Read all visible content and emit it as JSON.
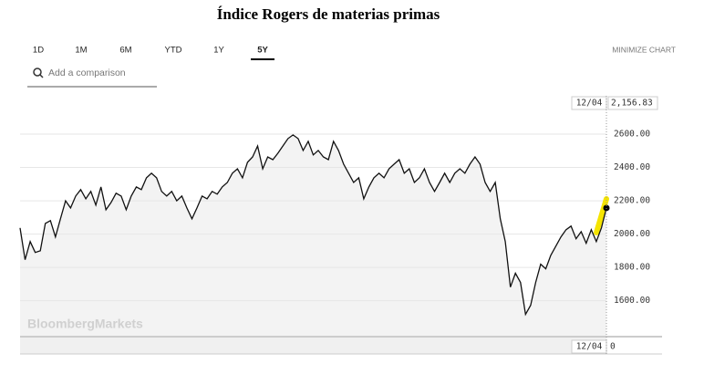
{
  "title": "Índice Rogers de materias primas",
  "ui": {
    "tabs": [
      "1D",
      "1M",
      "6M",
      "YTD",
      "1Y",
      "5Y"
    ],
    "selected_tab": "5Y",
    "minimize": "MINIMIZE CHART",
    "search_placeholder": "Add a comparison",
    "watermark": "BloombergMarkets"
  },
  "chart_data": {
    "type": "line",
    "color": "#111111",
    "area_color": "#f3f3f3",
    "grid": true,
    "ylim": [
      1390,
      2830
    ],
    "yticks": [
      {
        "value": 1600,
        "label": "1600.00"
      },
      {
        "value": 1800,
        "label": "1800.00"
      },
      {
        "value": 2000,
        "label": "2000.00"
      },
      {
        "value": 2200,
        "label": "2200.00"
      },
      {
        "value": 2400,
        "label": "2400.00"
      },
      {
        "value": 2600,
        "label": "2600.00"
      }
    ],
    "values": [
      2037,
      1846,
      1955,
      1890,
      1900,
      2064,
      2081,
      1983,
      2092,
      2200,
      2157,
      2228,
      2267,
      2212,
      2256,
      2174,
      2283,
      2146,
      2190,
      2245,
      2228,
      2146,
      2228,
      2283,
      2267,
      2338,
      2365,
      2338,
      2256,
      2228,
      2256,
      2200,
      2228,
      2157,
      2092,
      2157,
      2228,
      2212,
      2256,
      2240,
      2283,
      2310,
      2365,
      2392,
      2338,
      2431,
      2463,
      2529,
      2392,
      2463,
      2447,
      2485,
      2529,
      2573,
      2595,
      2573,
      2502,
      2557,
      2475,
      2502,
      2463,
      2447,
      2557,
      2502,
      2420,
      2365,
      2310,
      2338,
      2212,
      2283,
      2338,
      2365,
      2338,
      2392,
      2420,
      2447,
      2365,
      2392,
      2310,
      2338,
      2392,
      2310,
      2256,
      2310,
      2365,
      2310,
      2365,
      2392,
      2365,
      2420,
      2463,
      2420,
      2310,
      2256,
      2310,
      2092,
      1955,
      1682,
      1765,
      1710,
      1518,
      1573,
      1710,
      1819,
      1792,
      1873,
      1928,
      1983,
      2026,
      2048,
      1972,
      2015,
      1945,
      2026,
      1955,
      2037,
      2156.83
    ],
    "last": {
      "date": "12/04",
      "value": 2156.83,
      "label": "2,156.83"
    },
    "volume": {
      "date": "12/04",
      "value": 0
    }
  }
}
